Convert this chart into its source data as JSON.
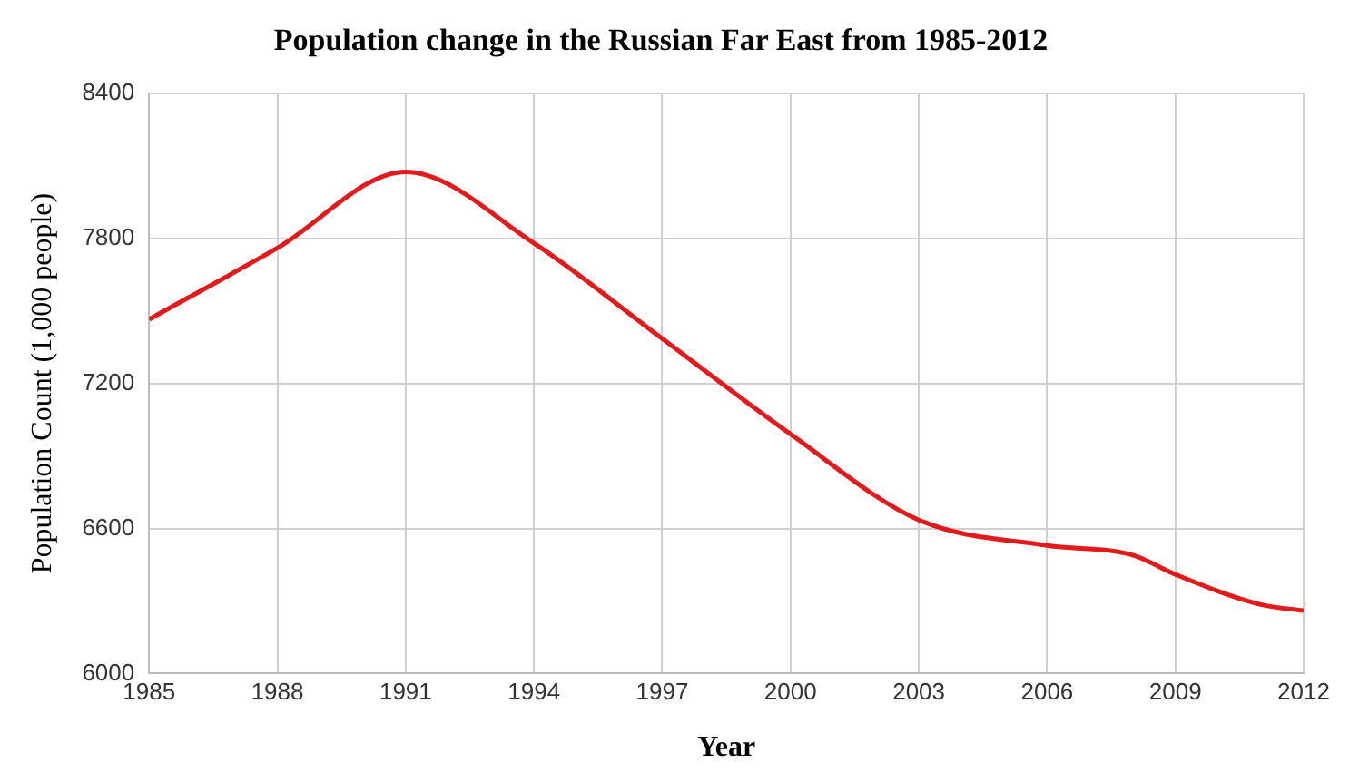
{
  "chart_data": {
    "type": "line",
    "title": "Population change in the Russian Far East from 1985-2012",
    "xlabel": "Year",
    "ylabel": "Population Count (1,000 people)",
    "x": [
      1985,
      1988,
      1991,
      1994,
      1997,
      2000,
      2003,
      2006,
      2008,
      2009,
      2011,
      2012
    ],
    "series": [
      {
        "color": "#e31a1c",
        "values": [
          7465,
          7760,
          8075,
          7780,
          7385,
          6990,
          6635,
          6530,
          6490,
          6410,
          6285,
          6260
        ]
      }
    ],
    "xlim": [
      1985,
      2012
    ],
    "xticks": [
      1985,
      1988,
      1991,
      1994,
      1997,
      2000,
      2003,
      2006,
      2009,
      2012
    ],
    "ylim": [
      6000,
      8400
    ],
    "yticks": [
      6000,
      6600,
      7200,
      7800,
      8400
    ],
    "grid": true,
    "legend": false,
    "marker": "none",
    "line_style": "solid"
  }
}
